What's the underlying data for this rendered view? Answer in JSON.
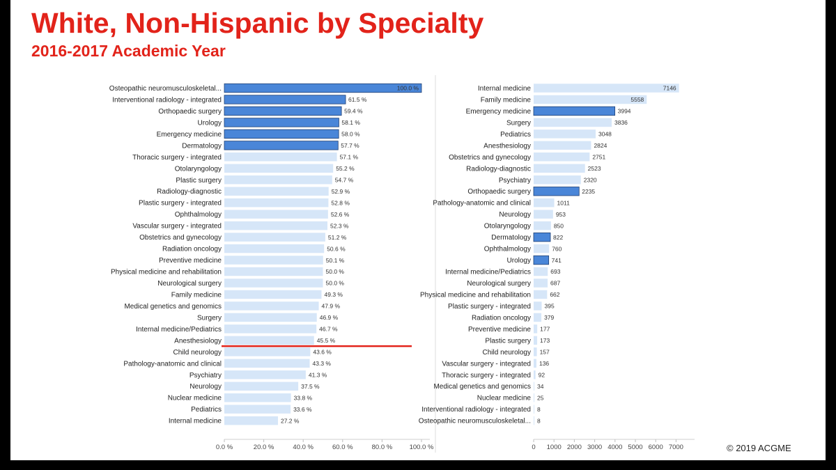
{
  "slide": {
    "title": "White, Non-Hispanic by Specialty",
    "subtitle": "2016-2017 Academic Year",
    "footer": "© 2019  ACGME"
  },
  "colors": {
    "highlight": "#4a86d8",
    "base": "#d6e6f8",
    "reference": "#e2231a",
    "title": "#e2231a"
  },
  "chart_data": [
    {
      "type": "bar",
      "orientation": "horizontal",
      "title": "",
      "xlabel": "",
      "ylabel": "",
      "xlim": [
        0,
        100
      ],
      "ticks": [
        "0.0 %",
        "20.0 %",
        "40.0 %",
        "60.0 %",
        "80.0 %",
        "100.0 %"
      ],
      "reference_line": {
        "category": "Anesthesiology",
        "value": 45.5
      },
      "categories": [
        "Osteopathic neuromusculoskeletal...",
        "Interventional radiology - integrated",
        "Orthopaedic surgery",
        "Urology",
        "Emergency medicine",
        "Dermatology",
        "Thoracic surgery - integrated",
        "Otolaryngology",
        "Plastic surgery",
        "Radiology-diagnostic",
        "Plastic surgery - integrated",
        "Ophthalmology",
        "Vascular surgery - integrated",
        "Obstetrics and gynecology",
        "Radiation oncology",
        "Preventive medicine",
        "Physical medicine and rehabilitation",
        "Neurological surgery",
        "Family medicine",
        "Medical genetics and genomics",
        "Surgery",
        "Internal medicine/Pediatrics",
        "Anesthesiology",
        "Child neurology",
        "Pathology-anatomic and clinical",
        "Psychiatry",
        "Neurology",
        "Nuclear medicine",
        "Pediatrics",
        "Internal medicine"
      ],
      "values": [
        100.0,
        61.5,
        59.4,
        58.1,
        58.0,
        57.7,
        57.1,
        55.2,
        54.7,
        52.9,
        52.8,
        52.6,
        52.3,
        51.2,
        50.6,
        50.1,
        50.0,
        50.0,
        49.3,
        47.9,
        46.9,
        46.7,
        45.5,
        43.6,
        43.3,
        41.3,
        37.5,
        33.8,
        33.6,
        27.2
      ],
      "labels": [
        "100.0 %",
        "61.5 %",
        "59.4 %",
        "58.1 %",
        "58.0 %",
        "57.7 %",
        "57.1 %",
        "55.2 %",
        "54.7 %",
        "52.9 %",
        "52.8 %",
        "52.6 %",
        "52.3 %",
        "51.2 %",
        "50.6 %",
        "50.1 %",
        "50.0 %",
        "50.0 %",
        "49.3 %",
        "47.9 %",
        "46.9 %",
        "46.7 %",
        "45.5 %",
        "43.6 %",
        "43.3 %",
        "41.3 %",
        "37.5 %",
        "33.8 %",
        "33.6 %",
        "27.2 %"
      ],
      "highlighted": [
        "Osteopathic neuromusculoskeletal...",
        "Interventional radiology - integrated",
        "Orthopaedic surgery",
        "Urology",
        "Emergency medicine",
        "Dermatology"
      ]
    },
    {
      "type": "bar",
      "orientation": "horizontal",
      "title": "",
      "xlabel": "",
      "ylabel": "",
      "xlim": [
        0,
        7500
      ],
      "ticks": [
        "0",
        "1000",
        "2000",
        "3000",
        "4000",
        "5000",
        "6000",
        "7000"
      ],
      "categories": [
        "Internal medicine",
        "Family medicine",
        "Emergency medicine",
        "Surgery",
        "Pediatrics",
        "Anesthesiology",
        "Obstetrics and gynecology",
        "Radiology-diagnostic",
        "Psychiatry",
        "Orthopaedic surgery",
        "Pathology-anatomic and clinical",
        "Neurology",
        "Otolaryngology",
        "Dermatology",
        "Ophthalmology",
        "Urology",
        "Internal medicine/Pediatrics",
        "Neurological surgery",
        "Physical medicine and rehabilitation",
        "Plastic surgery - integrated",
        "Radiation oncology",
        "Preventive medicine",
        "Plastic surgery",
        "Child neurology",
        "Vascular surgery - integrated",
        "Thoracic surgery - integrated",
        "Medical genetics and genomics",
        "Nuclear medicine",
        "Interventional radiology - integrated",
        "Osteopathic neuromusculoskeletal..."
      ],
      "values": [
        7146,
        5558,
        3994,
        3836,
        3048,
        2824,
        2751,
        2523,
        2320,
        2235,
        1011,
        953,
        850,
        822,
        760,
        741,
        693,
        687,
        662,
        395,
        379,
        177,
        173,
        157,
        136,
        92,
        34,
        25,
        8,
        8
      ],
      "labels": [
        "7146",
        "5558",
        "3994",
        "3836",
        "3048",
        "2824",
        "2751",
        "2523",
        "2320",
        "2235",
        "1011",
        "953",
        "850",
        "822",
        "760",
        "741",
        "693",
        "687",
        "662",
        "395",
        "379",
        "177",
        "173",
        "157",
        "136",
        "92",
        "34",
        "25",
        "8",
        "8"
      ],
      "highlighted": [
        "Emergency medicine",
        "Orthopaedic surgery",
        "Dermatology",
        "Urology"
      ]
    }
  ]
}
